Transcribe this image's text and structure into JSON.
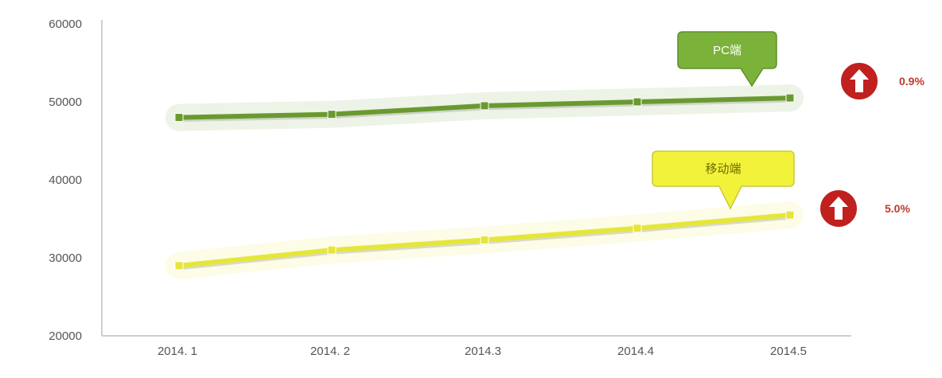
{
  "chart_data": {
    "type": "line",
    "title": "",
    "xlabel": "",
    "ylabel": "",
    "categories": [
      "2014. 1",
      "2014. 2",
      "2014.3",
      "2014.4",
      "2014.5"
    ],
    "ylim": [
      20000,
      60000
    ],
    "yticks": [
      20000,
      30000,
      40000,
      50000,
      60000
    ],
    "ytick_labels": [
      "20000",
      "30000",
      "40000",
      "50000",
      "60000"
    ],
    "grid": false,
    "legend": "none",
    "series": [
      {
        "name": "PC端",
        "values": [
          48000,
          48400,
          49500,
          50000,
          50500
        ],
        "color": "#6a9a2f",
        "change_label": "0.9%"
      },
      {
        "name": "移动端",
        "values": [
          29000,
          31000,
          32300,
          33800,
          35500
        ],
        "color": "#e6e63a",
        "change_label": "5.0%"
      }
    ],
    "colors": {
      "callout_pc": "#7bb23a",
      "callout_mobile": "#f2f23a",
      "arrow_badge": "#c0201e",
      "axis": "#bfbfbf"
    }
  }
}
